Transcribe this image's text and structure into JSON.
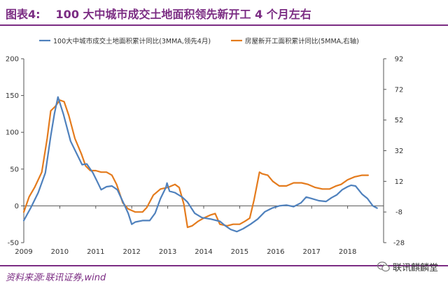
{
  "header": {
    "label": "图表4:",
    "text": "100 大中城市成交土地面积领先新开工 4 个月左右"
  },
  "footer": {
    "source": "资料来源:联讯证券,wind",
    "watermark": "联讯麒麟堂",
    "watermark_icon": "wechat-icon"
  },
  "colors": {
    "accent": "#7b2c83",
    "series_blue": "#4f81bd",
    "series_orange": "#e47b1d",
    "axis": "#555555"
  },
  "chart_data": {
    "type": "line",
    "title": "",
    "xlabel": "",
    "ylabel": "",
    "ylim_left": [
      -50,
      200
    ],
    "yticks_left": [
      -50,
      0,
      50,
      100,
      150,
      200
    ],
    "ylim_right": [
      -28,
      92
    ],
    "yticks_right": [
      -28,
      -8,
      12,
      32,
      52,
      72,
      92
    ],
    "xlim": [
      2009,
      2019
    ],
    "xticks": [
      "2009",
      "2010",
      "2011",
      "2012",
      "2013",
      "2014",
      "2015",
      "2016",
      "2017",
      "2018"
    ],
    "grid": false,
    "legend_position": "top",
    "series": [
      {
        "name": "100大中城市成交土地面积累计同比(3MMA,领先4月)",
        "axis": "left",
        "color": "#4f81bd",
        "points": [
          [
            2009.0,
            -20
          ],
          [
            2009.2,
            -2
          ],
          [
            2009.4,
            18
          ],
          [
            2009.6,
            45
          ],
          [
            2009.75,
            95
          ],
          [
            2009.85,
            125
          ],
          [
            2009.95,
            148
          ],
          [
            2010.1,
            125
          ],
          [
            2010.3,
            88
          ],
          [
            2010.5,
            68
          ],
          [
            2010.62,
            56
          ],
          [
            2010.75,
            57
          ],
          [
            2010.92,
            45
          ],
          [
            2011.05,
            32
          ],
          [
            2011.15,
            22
          ],
          [
            2011.3,
            26
          ],
          [
            2011.45,
            27
          ],
          [
            2011.6,
            22
          ],
          [
            2011.75,
            6
          ],
          [
            2011.9,
            -10
          ],
          [
            2012.0,
            -25
          ],
          [
            2012.1,
            -22
          ],
          [
            2012.3,
            -20
          ],
          [
            2012.5,
            -20
          ],
          [
            2012.65,
            -10
          ],
          [
            2012.8,
            10
          ],
          [
            2012.95,
            25
          ],
          [
            2012.98,
            31
          ],
          [
            2013.05,
            20
          ],
          [
            2013.2,
            18
          ],
          [
            2013.4,
            12
          ],
          [
            2013.55,
            5
          ],
          [
            2013.75,
            -10
          ],
          [
            2013.95,
            -16
          ],
          [
            2014.2,
            -18
          ],
          [
            2014.45,
            -21
          ],
          [
            2014.6,
            -27
          ],
          [
            2014.75,
            -32
          ],
          [
            2014.92,
            -35
          ],
          [
            2015.1,
            -31
          ],
          [
            2015.3,
            -25
          ],
          [
            2015.5,
            -18
          ],
          [
            2015.7,
            -8
          ],
          [
            2015.9,
            -3
          ],
          [
            2016.1,
            0
          ],
          [
            2016.3,
            1
          ],
          [
            2016.5,
            -1
          ],
          [
            2016.7,
            4
          ],
          [
            2016.85,
            12
          ],
          [
            2017.0,
            10
          ],
          [
            2017.2,
            7
          ],
          [
            2017.4,
            6
          ],
          [
            2017.55,
            11
          ],
          [
            2017.7,
            15
          ],
          [
            2017.85,
            22
          ],
          [
            2018.0,
            26
          ],
          [
            2018.1,
            28
          ],
          [
            2018.22,
            27
          ],
          [
            2018.4,
            16
          ],
          [
            2018.55,
            10
          ],
          [
            2018.7,
            0
          ],
          [
            2018.82,
            -3
          ]
        ]
      },
      {
        "name": "房屋新开工面积累计同比(5MMA,右轴)",
        "axis": "right",
        "color": "#e47b1d",
        "points": [
          [
            2009.0,
            -8
          ],
          [
            2009.15,
            2
          ],
          [
            2009.3,
            8
          ],
          [
            2009.5,
            18
          ],
          [
            2009.65,
            40
          ],
          [
            2009.75,
            58
          ],
          [
            2009.88,
            61
          ],
          [
            2010.0,
            65
          ],
          [
            2010.12,
            64
          ],
          [
            2010.25,
            55
          ],
          [
            2010.42,
            40
          ],
          [
            2010.6,
            30
          ],
          [
            2010.72,
            22
          ],
          [
            2010.85,
            19
          ],
          [
            2011.0,
            19
          ],
          [
            2011.15,
            18
          ],
          [
            2011.3,
            18
          ],
          [
            2011.45,
            16
          ],
          [
            2011.58,
            10
          ],
          [
            2011.75,
            -2
          ],
          [
            2011.9,
            -6
          ],
          [
            2012.1,
            -8
          ],
          [
            2012.3,
            -8
          ],
          [
            2012.42,
            -5
          ],
          [
            2012.6,
            3
          ],
          [
            2012.8,
            7
          ],
          [
            2013.0,
            8
          ],
          [
            2013.2,
            10
          ],
          [
            2013.32,
            8
          ],
          [
            2013.45,
            -3
          ],
          [
            2013.55,
            -18
          ],
          [
            2013.68,
            -17
          ],
          [
            2013.85,
            -14
          ],
          [
            2014.0,
            -12
          ],
          [
            2014.18,
            -10
          ],
          [
            2014.32,
            -9
          ],
          [
            2014.45,
            -16
          ],
          [
            2014.65,
            -17
          ],
          [
            2014.82,
            -16
          ],
          [
            2015.0,
            -16
          ],
          [
            2015.15,
            -14
          ],
          [
            2015.28,
            -12
          ],
          [
            2015.4,
            0
          ],
          [
            2015.55,
            18
          ],
          [
            2015.62,
            17
          ],
          [
            2015.78,
            16
          ],
          [
            2015.92,
            12
          ],
          [
            2016.1,
            9
          ],
          [
            2016.3,
            9
          ],
          [
            2016.5,
            11
          ],
          [
            2016.72,
            11
          ],
          [
            2016.9,
            10
          ],
          [
            2017.1,
            8
          ],
          [
            2017.3,
            7
          ],
          [
            2017.5,
            7
          ],
          [
            2017.68,
            9
          ],
          [
            2017.82,
            10
          ],
          [
            2018.0,
            13
          ],
          [
            2018.2,
            15
          ],
          [
            2018.4,
            16
          ],
          [
            2018.57,
            16
          ]
        ]
      }
    ]
  }
}
